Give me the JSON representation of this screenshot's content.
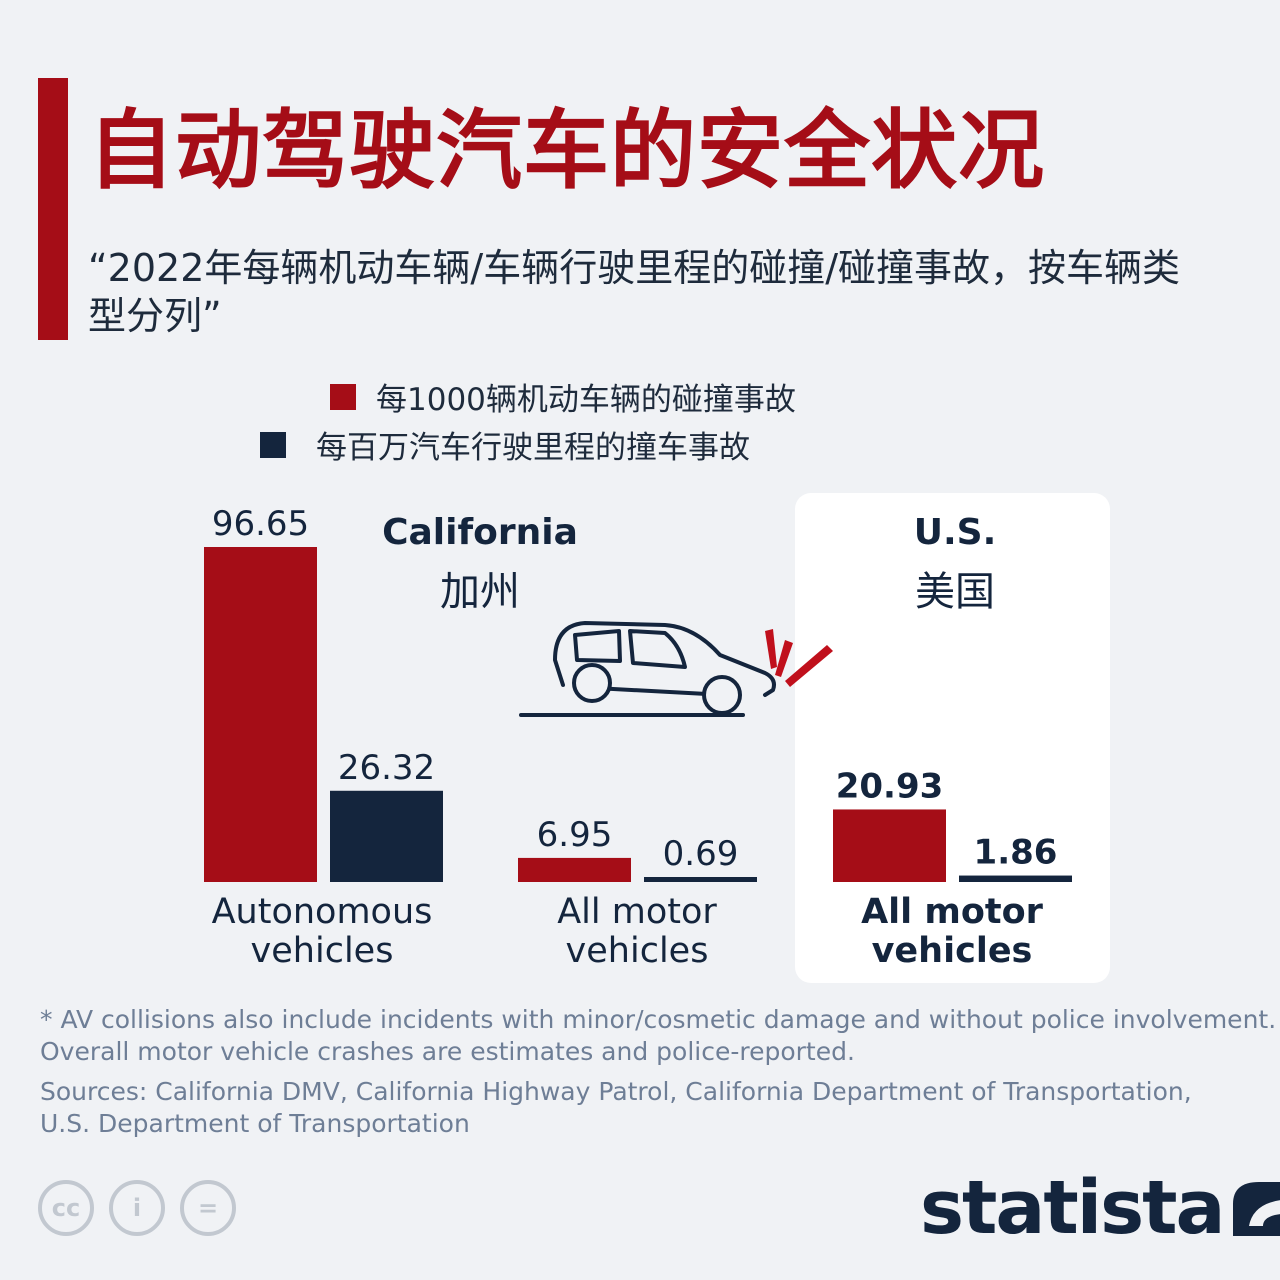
{
  "header": {
    "title": "自动驾驶汽车的安全状况",
    "subtitle": "“2022年每辆机动车辆/车辆行驶里程的碰撞/碰撞事故，按车辆类型分列”"
  },
  "legend": [
    {
      "label": "每1000辆机动车辆的碰撞事故",
      "color": "#a50d17"
    },
    {
      "label": "每百万汽车行驶里程的撞车事故",
      "color": "#14253d"
    }
  ],
  "regions": {
    "california": {
      "en": "California",
      "cn": "加州"
    },
    "us": {
      "en": "U.S.",
      "cn": "美国"
    }
  },
  "chart_data": {
    "type": "bar",
    "categories": [
      "Autonomous vehicles",
      "All motor vehicles",
      "All motor vehicles"
    ],
    "category_lines": [
      [
        "Autonomous",
        "vehicles"
      ],
      [
        "All motor",
        "vehicles"
      ],
      [
        "All motor",
        "vehicles"
      ]
    ],
    "category_regions": [
      "California",
      "California",
      "U.S."
    ],
    "series": [
      {
        "name": "每1000辆机动车辆的碰撞事故",
        "values": [
          96.65,
          6.95,
          20.93
        ],
        "color": "#a50d17"
      },
      {
        "name": "每百万汽车行驶里程的撞车事故",
        "values": [
          26.32,
          0.69,
          1.86
        ],
        "color": "#14253d"
      }
    ],
    "title": "自动驾驶汽车的安全状况",
    "xlabel": "",
    "ylabel": "",
    "ylim": [
      0,
      100
    ],
    "grid": false,
    "legend_position": "top",
    "highlight_group_bold": [
      false,
      false,
      true
    ]
  },
  "footnote": {
    "line1": "* AV collisions also include incidents with minor/cosmetic damage and without police involvement.",
    "line2": "Overall motor vehicle crashes are estimates and police-reported."
  },
  "sources": {
    "line1": "Sources: California DMV, California Highway Patrol, California Department of Transportation,",
    "line2": "U.S. Department of Transportation"
  },
  "license_icons": [
    "cc-icon",
    "attribution-icon",
    "no-derivatives-icon"
  ],
  "license_labels": {
    "cc": "cc",
    "by": "i",
    "nd": "="
  },
  "brand": {
    "name": "statista"
  }
}
